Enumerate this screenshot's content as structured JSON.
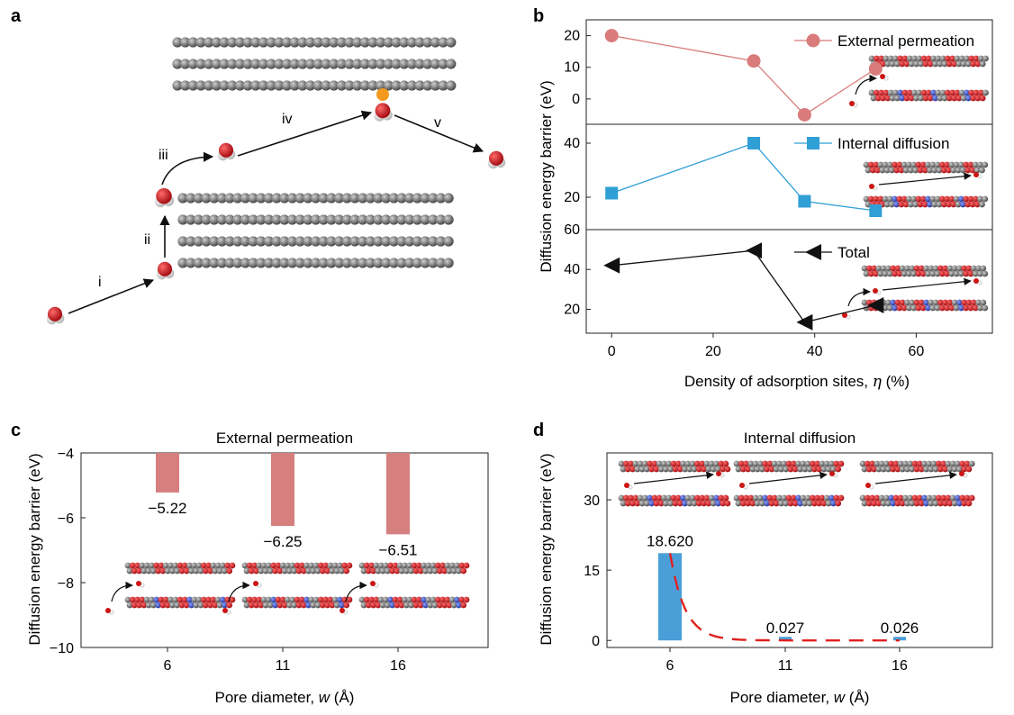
{
  "panel_labels": {
    "a": "a",
    "b": "b",
    "c": "c",
    "d": "d"
  },
  "panel_a": {
    "steps": [
      "i",
      "ii",
      "iii",
      "iv",
      "v"
    ]
  },
  "chart_data": [
    {
      "type": "line",
      "panel": "b",
      "ylabel": "Diffusion energy barrier (eV)",
      "xlabel_prefix": "Density of adsorption sites, ",
      "xlabel_symbol": "η",
      "xlabel_suffix": " (%)",
      "xlim": [
        -5,
        75
      ],
      "xticks": [
        0,
        20,
        40,
        60
      ],
      "x": [
        0,
        28,
        38,
        52
      ],
      "series": [
        {
          "name": "External permeation",
          "color": "#d97b7b",
          "marker": "circle",
          "values": [
            20,
            12,
            -5,
            9.5
          ],
          "ylim": [
            -8,
            25
          ],
          "yticks": [
            0,
            10,
            20
          ]
        },
        {
          "name": "Internal diffusion",
          "color": "#2f9fd6",
          "marker": "square",
          "values": [
            21.5,
            40,
            18.5,
            15
          ],
          "ylim": [
            8,
            47
          ],
          "yticks": [
            20,
            40
          ]
        },
        {
          "name": "Total",
          "color": "#111111",
          "marker": "triangle-left",
          "values": [
            42,
            49.5,
            13.5,
            22
          ],
          "ylim": [
            8,
            60
          ],
          "yticks": [
            20,
            40,
            60
          ]
        }
      ]
    },
    {
      "type": "bar",
      "panel": "c",
      "title": "External permeation",
      "xlabel_prefix": "Pore diameter, ",
      "xlabel_symbol": "w",
      "xlabel_suffix": " (Å)",
      "ylabel": "Diffusion energy barrier (eV)",
      "categories": [
        "6",
        "11",
        "16"
      ],
      "values": [
        -5.22,
        -6.25,
        -6.51
      ],
      "value_labels": [
        "−5.22",
        "−6.25",
        "−6.51"
      ],
      "ylim": [
        -10,
        -4
      ],
      "yticks": [
        -10,
        -8,
        -6,
        -4
      ],
      "ytick_labels": [
        "−10",
        "−8",
        "−6",
        "−4"
      ],
      "color": "#d77f7f"
    },
    {
      "type": "bar",
      "panel": "d",
      "title": "Internal diffusion",
      "xlabel_prefix": "Pore diameter, ",
      "xlabel_symbol": "w",
      "xlabel_suffix": " (Å)",
      "ylabel": "Diffusion energy barrier (eV)",
      "categories": [
        "6",
        "11",
        "16"
      ],
      "values": [
        18.62,
        0.027,
        0.026
      ],
      "value_labels": [
        "18.620",
        "0.027",
        "0.026"
      ],
      "ylim": [
        -1.5,
        40
      ],
      "yticks": [
        0,
        15,
        30
      ],
      "color": "#4a9fd8",
      "fit_color": "#e02020"
    }
  ]
}
